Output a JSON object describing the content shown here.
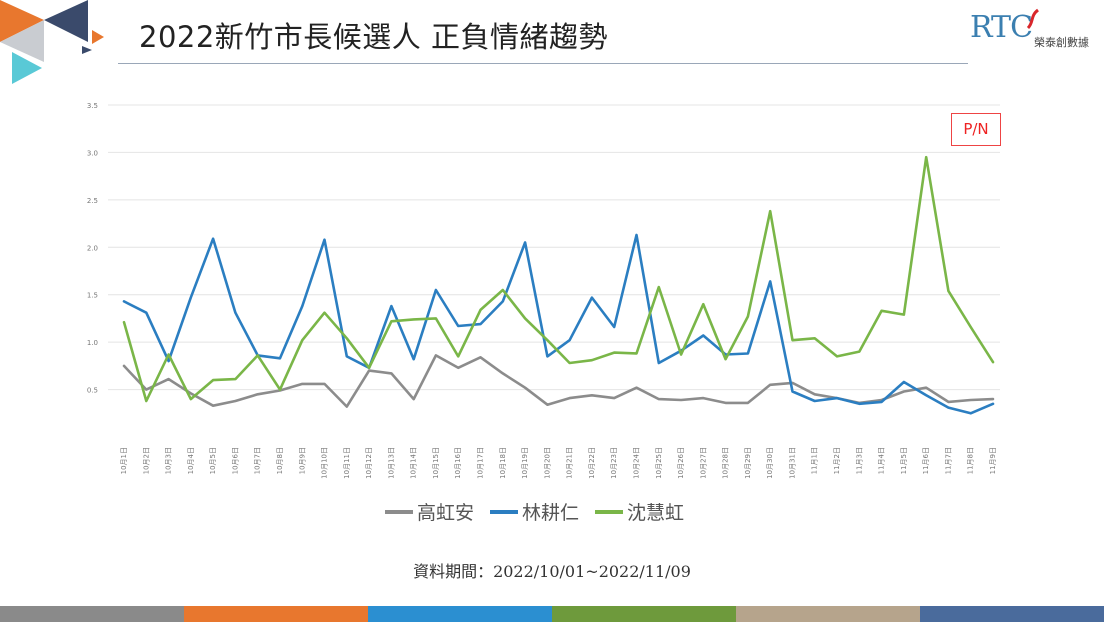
{
  "page": {
    "title": "2022新竹市長候選人 正負情緒趨勢"
  },
  "logo": {
    "text": "RTC",
    "subtitle": "榮泰創數據"
  },
  "badge": {
    "label": "P/N"
  },
  "source_note": "資料期間：2022/10/01~2022/11/09",
  "footer_colors": [
    "#8a8a8a",
    "#e8772e",
    "#2b8fd1",
    "#6e9a3c",
    "#b6a48c",
    "#4a6b9c"
  ],
  "corner_colors": {
    "orange": "#e8772e",
    "navy": "#3a4a6b",
    "gray": "#c9ccd1",
    "teal": "#59c9d6"
  },
  "chart_data": {
    "type": "line",
    "x": [
      "10月1日",
      "10月2日",
      "10月3日",
      "10月4日",
      "10月5日",
      "10月6日",
      "10月7日",
      "10月8日",
      "10月9日",
      "10月10日",
      "10月11日",
      "10月12日",
      "10月13日",
      "10月14日",
      "10月15日",
      "10月16日",
      "10月17日",
      "10月18日",
      "10月19日",
      "10月20日",
      "10月21日",
      "10月22日",
      "10月23日",
      "10月24日",
      "10月25日",
      "10月26日",
      "10月27日",
      "10月28日",
      "10月29日",
      "10月30日",
      "10月31日",
      "11月1日",
      "11月2日",
      "11月3日",
      "11月4日",
      "11月5日",
      "11月6日",
      "11月7日",
      "11月8日",
      "11月9日"
    ],
    "ylim": [
      0,
      3.5
    ],
    "yticks": [
      "",
      "0.5",
      "1.0",
      "1.5",
      "2.0",
      "2.5",
      "3.0",
      "3.5"
    ],
    "ytick_values": [
      0,
      0.5,
      1.0,
      1.5,
      2.0,
      2.5,
      3.0,
      3.5
    ],
    "grid": true,
    "legend_position": "bottom",
    "series": [
      {
        "name": "高虹安",
        "color": "#8c8c8c",
        "values": [
          0.75,
          0.5,
          0.61,
          0.46,
          0.33,
          0.38,
          0.45,
          0.49,
          0.56,
          0.56,
          0.32,
          0.7,
          0.67,
          0.4,
          0.86,
          0.73,
          0.84,
          0.67,
          0.52,
          0.34,
          0.41,
          0.44,
          0.41,
          0.52,
          0.4,
          0.39,
          0.41,
          0.36,
          0.36,
          0.55,
          0.57,
          0.45,
          0.41,
          0.36,
          0.39,
          0.48,
          0.52,
          0.37,
          0.39,
          0.4
        ]
      },
      {
        "name": "林耕仁",
        "color": "#2b7ec1",
        "values": [
          1.43,
          1.31,
          0.8,
          1.47,
          2.09,
          1.31,
          0.86,
          0.83,
          1.38,
          2.08,
          0.85,
          0.73,
          1.38,
          0.82,
          1.55,
          1.17,
          1.19,
          1.43,
          2.05,
          0.85,
          1.02,
          1.47,
          1.16,
          2.13,
          0.78,
          0.91,
          1.07,
          0.87,
          0.88,
          1.64,
          0.48,
          0.38,
          0.41,
          0.35,
          0.37,
          0.58,
          0.44,
          0.31,
          0.25,
          0.35
        ]
      },
      {
        "name": "沈慧虹",
        "color": "#7ab648",
        "values": [
          1.21,
          0.38,
          0.87,
          0.4,
          0.6,
          0.61,
          0.86,
          0.5,
          1.02,
          1.31,
          1.04,
          0.73,
          1.22,
          1.24,
          1.25,
          0.85,
          1.34,
          1.55,
          1.25,
          1.02,
          0.78,
          0.81,
          0.89,
          0.88,
          1.58,
          0.87,
          1.4,
          0.82,
          1.27,
          2.38,
          1.02,
          1.04,
          0.85,
          0.9,
          1.33,
          1.29,
          2.95,
          1.54,
          1.16,
          0.79
        ]
      }
    ]
  }
}
